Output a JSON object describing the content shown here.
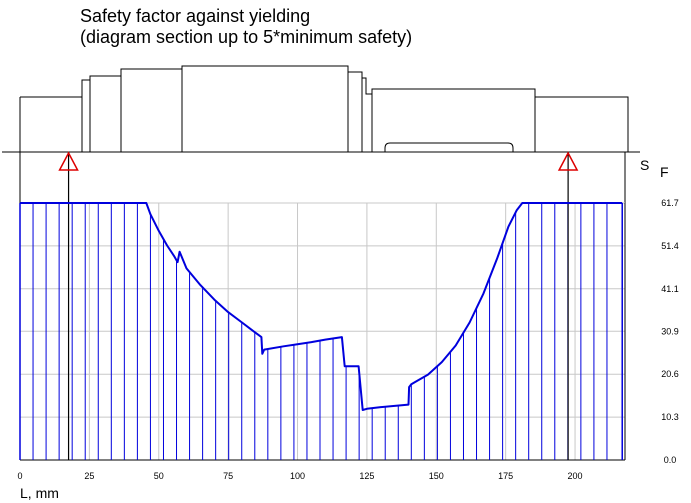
{
  "title_line1": "Safety factor against yielding",
  "title_line2": "(diagram section up to 5*minimum safety)",
  "chart_data": {
    "type": "line",
    "title": "Safety factor against yielding (diagram section up to 5*minimum safety)",
    "xlabel": "L, mm",
    "ylabel_main": "S",
    "ylabel_sub": "F",
    "xlim": [
      0,
      218
    ],
    "ylim": [
      0,
      61.7
    ],
    "x_ticks": [
      "0",
      "25",
      "50",
      "75",
      "100",
      "125",
      "150",
      "175",
      "200"
    ],
    "x_tick_values": [
      0,
      25,
      50,
      75,
      100,
      125,
      150,
      175,
      200
    ],
    "y_ticks": [
      "0.0",
      "10.3",
      "20.6",
      "30.9",
      "41.1",
      "51.4",
      "61.7"
    ],
    "y_tick_values": [
      0,
      10.3,
      20.6,
      30.9,
      41.1,
      51.4,
      61.7
    ],
    "grid": true,
    "line_color": "#0000dd",
    "support_color": "#dd0000",
    "series": [
      {
        "x": [
          0,
          45.5,
          47,
          50,
          53,
          55.5,
          56.8,
          57.5,
          60,
          65,
          70,
          75,
          80,
          83,
          87,
          87.3,
          88,
          95,
          100,
          105,
          110,
          116,
          117,
          118,
          121,
          122,
          123.5,
          125,
          130,
          135,
          140,
          140.2,
          141,
          147,
          152,
          157,
          162,
          167,
          172,
          176,
          179,
          181,
          217
        ],
        "y": [
          61.7,
          61.7,
          59,
          55,
          51.5,
          49,
          47.5,
          50,
          46,
          42,
          38.5,
          35.5,
          33,
          31.5,
          29.5,
          25.5,
          26.5,
          27.3,
          27.8,
          28.3,
          28.9,
          29.5,
          22.5,
          22.5,
          22.5,
          22.5,
          12,
          12.3,
          12.7,
          13,
          13.3,
          17.5,
          18.2,
          20.5,
          23.5,
          27.5,
          33,
          40,
          48.5,
          56,
          60,
          61.7,
          61.7
        ]
      }
    ],
    "hatch_x": [
      4.7,
      9.4,
      14.1,
      18.8,
      23.5,
      28.2,
      32.9,
      37.6,
      42.3,
      47,
      51.7,
      56.4,
      61.1,
      65.8,
      70.5,
      75.2,
      79.9,
      84.6,
      89.3,
      94,
      98.7,
      103.4,
      108.1,
      112.8,
      117.5,
      122.2,
      126.9,
      131.6,
      136.3,
      141,
      145.7,
      150.4,
      155.1,
      159.8,
      164.5,
      169.2,
      173.9,
      178.6,
      183.3,
      188,
      192.7,
      197.4,
      202.1,
      206.8,
      211.5
    ],
    "supports_x": [
      17.5,
      197.5
    ]
  }
}
